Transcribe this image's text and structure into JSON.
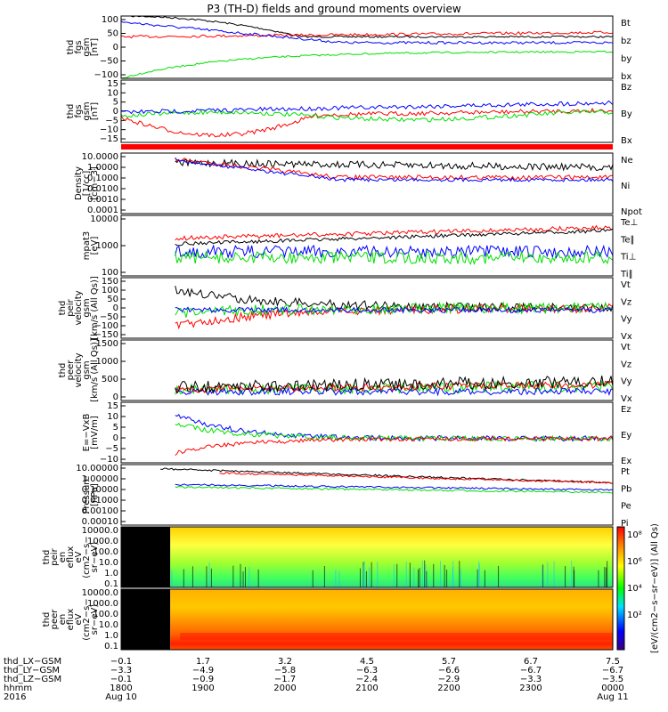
{
  "colors": {
    "black": "#000000",
    "red": "#ff0000",
    "green": "#00e000",
    "blue": "#0000ff"
  },
  "chart_data": {
    "type": "line",
    "title": "P3 (TH-D) fields and ground moments overview",
    "panels": [
      {
        "id": "p1",
        "ylabel": [
          "thd",
          "fgs",
          "gsm",
          "[nT]"
        ],
        "yticks": [
          "100",
          "50",
          "0",
          "−50",
          "−100"
        ],
        "ylim": [
          -100,
          110
        ],
        "legend": [
          {
            "t": "Bt",
            "c": "black"
          },
          {
            "t": "bz",
            "c": "red"
          },
          {
            "t": "by",
            "c": "green"
          },
          {
            "t": "bx",
            "c": "blue"
          }
        ]
      },
      {
        "id": "p2",
        "ylabel": [
          "thd",
          "fgs",
          "gsm",
          "[nT]"
        ],
        "yticks": [
          "15",
          "10",
          "5",
          "0",
          "−5",
          "−10",
          "−15"
        ],
        "ylim": [
          -18,
          15
        ],
        "legend": [
          {
            "t": "Bz",
            "c": "red"
          },
          {
            "t": "By",
            "c": "green"
          },
          {
            "t": "Bx",
            "c": "blue"
          }
        ]
      },
      {
        "id": "p3",
        "ylabel": [
          "Density",
          "[1/cc]",
          "[cm−3]"
        ],
        "yticks": [
          "10.0000",
          "1.0000",
          "0.1000",
          "0.0100",
          "0.0010",
          "0.0001"
        ],
        "log": true,
        "legend": [
          {
            "t": "Ne",
            "c": "red"
          },
          {
            "t": "Ni",
            "c": "black"
          },
          {
            "t": "Npot",
            "c": "blue"
          }
        ]
      },
      {
        "id": "p4",
        "ylabel": [
          "mpat3",
          "[eV]"
        ],
        "yticks": [
          "10000",
          "1000",
          "100"
        ],
        "log": true,
        "legend": [
          {
            "t": "Te⊥",
            "c": "red"
          },
          {
            "t": "Te∥",
            "c": "black"
          },
          {
            "t": "Ti⊥",
            "c": "blue"
          },
          {
            "t": "Ti∥",
            "c": "green"
          }
        ]
      },
      {
        "id": "p5",
        "ylabel": [
          "thd",
          "peir",
          "velocity",
          "gsm",
          "[km/s (All Qs)]"
        ],
        "yticks": [
          "150",
          "100",
          "50",
          "0",
          "−50",
          "−100",
          "−150"
        ],
        "ylim": [
          -150,
          150
        ],
        "legend": [
          {
            "t": "Vt",
            "c": "black"
          },
          {
            "t": "Vz",
            "c": "red"
          },
          {
            "t": "Vy",
            "c": "green"
          },
          {
            "t": "Vx",
            "c": "blue"
          }
        ]
      },
      {
        "id": "p6",
        "ylabel": [
          "thd",
          "peer",
          "velocity",
          "gsm",
          "[km/s (All Qs)]"
        ],
        "yticks": [
          "1500",
          "1000",
          "500",
          "0"
        ],
        "ylim": [
          -200,
          1500
        ],
        "legend": [
          {
            "t": "Vt",
            "c": "black"
          },
          {
            "t": "Vz",
            "c": "red"
          },
          {
            "t": "Vy",
            "c": "green"
          },
          {
            "t": "Vx",
            "c": "blue"
          }
        ]
      },
      {
        "id": "p7",
        "ylabel": [
          "E=−VxB",
          "[mV/m]"
        ],
        "yticks": [
          "15",
          "10",
          "5",
          "0",
          "−5",
          "−10"
        ],
        "ylim": [
          -10,
          15
        ],
        "legend": [
          {
            "t": "Ez",
            "c": "red"
          },
          {
            "t": "Ey",
            "c": "green"
          },
          {
            "t": "Ex",
            "c": "blue"
          }
        ]
      },
      {
        "id": "p8",
        "ylabel": [
          "Pressure",
          "[nPa]"
        ],
        "yticks": [
          "10.00000",
          "1.00000",
          "0.10000",
          "0.01000",
          "0.00100",
          "0.00010"
        ],
        "log": true,
        "legend": [
          {
            "t": "Pt",
            "c": "black"
          },
          {
            "t": "Pb",
            "c": "red"
          },
          {
            "t": "Pe",
            "c": "green"
          },
          {
            "t": "Pi",
            "c": "blue"
          }
        ]
      },
      {
        "id": "p9",
        "ylabel": [
          "thd",
          "peir",
          "en",
          "eflux",
          "eV",
          "(cm2−s−",
          "sr−eV)"
        ],
        "yticks": [
          "10000.0",
          "1000.0",
          "100.0",
          "10.0",
          "1.0",
          "0.1"
        ],
        "type": "spectrogram"
      },
      {
        "id": "p10",
        "ylabel": [
          "thd",
          "peer",
          "en",
          "eflux",
          "eV",
          "(cm2−s−",
          "sr−eV)"
        ],
        "yticks": [
          "10000.0",
          "1000.0",
          "100.0",
          "10.0",
          "1.0",
          "0.1"
        ],
        "type": "spectrogram"
      }
    ],
    "colorbar": {
      "ticks": [
        "10⁸",
        "10⁶",
        "10⁴",
        "10²"
      ],
      "label": "[eV/(cm2−s−sr−eV)] (All Qs)"
    },
    "x_axis": {
      "rows": [
        {
          "label": "thd_LX−GSM",
          "values": [
            "−0.1",
            "1.7",
            "3.2",
            "4.5",
            "5.7",
            "6.7",
            "7.5"
          ]
        },
        {
          "label": "thd_LY−GSM",
          "values": [
            "−3.3",
            "−4.9",
            "−5.8",
            "−6.3",
            "−6.6",
            "−6.7",
            "−6.7"
          ]
        },
        {
          "label": "thd_LZ−GSM",
          "values": [
            "−0.1",
            "−0.9",
            "−1.7",
            "−2.4",
            "−2.9",
            "−3.3",
            "−3.5"
          ]
        },
        {
          "label": "hhmm",
          "values": [
            "1800",
            "1900",
            "2000",
            "2100",
            "2200",
            "2300",
            "0000"
          ]
        },
        {
          "label": "2016",
          "values": [
            "Aug 10",
            "",
            "",
            "",
            "",
            "",
            "Aug 11"
          ]
        }
      ]
    }
  }
}
